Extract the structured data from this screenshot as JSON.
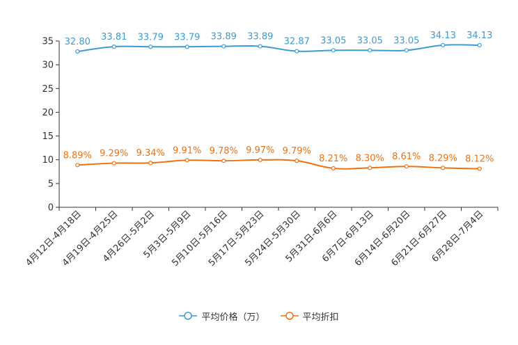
{
  "chart_data": {
    "type": "line",
    "categories": [
      "4月12日-4月18日",
      "4月19日-4月25日",
      "4月26日-5月2日",
      "5月3日-5月9日",
      "5月10日-5月16日",
      "5月17日-5月23日",
      "5月24日-5月30日",
      "5月31日-6月6日",
      "6月7日-6月13日",
      "6月14日-6月20日",
      "6月21日-6月27日",
      "6月28日-7月4日"
    ],
    "series": [
      {
        "name": "平均价格（万）",
        "color": "#3a9bd5",
        "values": [
          32.8,
          33.81,
          33.79,
          33.79,
          33.89,
          33.89,
          32.87,
          33.05,
          33.05,
          33.05,
          34.13,
          34.13
        ],
        "labels": [
          "32.80",
          "33.81",
          "33.79",
          "33.79",
          "33.89",
          "33.89",
          "32.87",
          "33.05",
          "33.05",
          "33.05",
          "34.13",
          "34.13"
        ]
      },
      {
        "name": "平均折扣",
        "color": "#f07010",
        "values": [
          8.89,
          9.29,
          9.34,
          9.91,
          9.78,
          9.97,
          9.79,
          8.21,
          8.3,
          8.61,
          8.29,
          8.12
        ],
        "labels": [
          "8.89%",
          "9.29%",
          "9.34%",
          "9.91%",
          "9.78%",
          "9.97%",
          "9.79%",
          "8.21%",
          "8.30%",
          "8.61%",
          "8.29%",
          "8.12%"
        ]
      }
    ],
    "y_ticks": [
      "0",
      "5",
      "10",
      "15",
      "20",
      "25",
      "30",
      "35"
    ],
    "ylim": [
      0,
      35
    ],
    "title": "",
    "xlabel": "",
    "ylabel": "",
    "legend_position": "bottom-center"
  }
}
